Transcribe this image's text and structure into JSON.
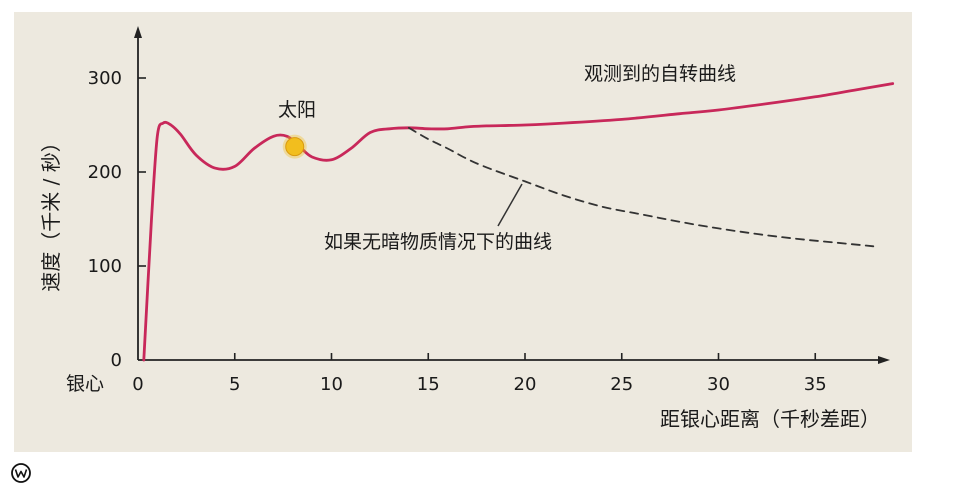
{
  "chart_data": {
    "type": "line",
    "x_origin_label": "银心",
    "xlabel": "距银心距离（千秒差距）",
    "ylabel": "速度（千米 / 秒）",
    "xlim": [
      0,
      39
    ],
    "ylim": [
      0,
      300
    ],
    "x_ticks": [
      0,
      5,
      10,
      15,
      20,
      25,
      30,
      35
    ],
    "y_ticks": [
      0,
      100,
      200,
      300
    ],
    "grid": false,
    "series": [
      {
        "name": "观测到的自转曲线",
        "color": "#c8285a",
        "style": "solid",
        "x": [
          0.3,
          0.7,
          1.0,
          1.3,
          1.7,
          2.2,
          3.0,
          4.0,
          5.0,
          6.0,
          7.0,
          7.7,
          8.3,
          9.0,
          10.0,
          11.0,
          12.0,
          13.0,
          14.0,
          15.0,
          16.0,
          17.0,
          18.0,
          20.0,
          22.0,
          25.0,
          28.0,
          30.0,
          33.0,
          35.0,
          37.0,
          39.0
        ],
        "values": [
          0,
          150,
          238,
          252,
          250,
          240,
          218,
          204,
          206,
          225,
          238,
          238,
          228,
          216,
          213,
          225,
          242,
          246,
          247,
          246,
          246,
          248,
          249,
          250,
          252,
          256,
          262,
          266,
          274,
          280,
          287,
          294
        ]
      },
      {
        "name": "如果无暗物质情况下的曲线",
        "color": "#333333",
        "style": "dashed",
        "x": [
          14.0,
          15.0,
          16.0,
          17.0,
          18.0,
          20.0,
          22.0,
          24.0,
          26.0,
          28.0,
          30.0,
          32.0,
          34.0,
          36.0,
          38.0
        ],
        "values": [
          247,
          235,
          225,
          214,
          205,
          190,
          175,
          163,
          155,
          147,
          140,
          134,
          129,
          125,
          121
        ]
      }
    ],
    "annotations": [
      {
        "id": "sun",
        "text": "太阳",
        "x": 8.1,
        "y": 227,
        "marker_color": "#f2be1e"
      }
    ]
  }
}
